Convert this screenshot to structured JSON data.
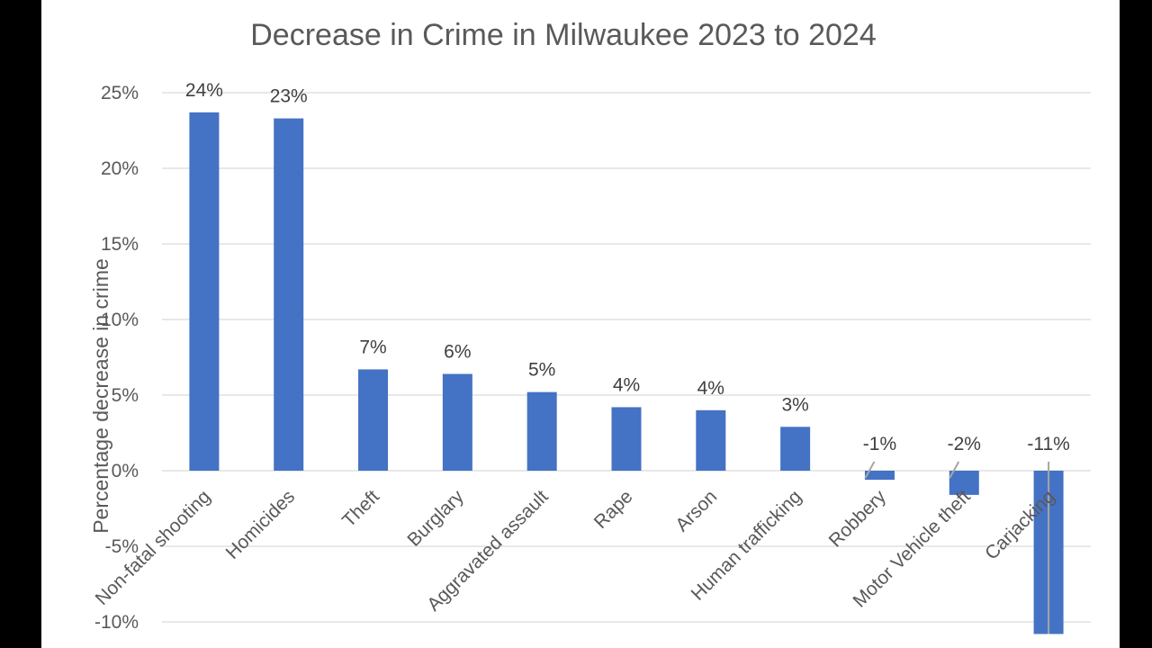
{
  "chart_data": {
    "type": "bar",
    "title": "Decrease in Crime in Milwaukee 2023 to 2024",
    "xlabel": "",
    "ylabel": "Percentage decrease in crime",
    "categories": [
      "Non-fatal shooting",
      "Homicides",
      "Theft",
      "Burglary",
      "Aggravated assault",
      "Rape",
      "Arson",
      "Human trafficking",
      "Robbery",
      "Motor Vehicle theft",
      "Carjacking"
    ],
    "values": [
      23.7,
      23.3,
      6.7,
      6.4,
      5.2,
      4.2,
      4.0,
      2.9,
      -0.6,
      -1.6,
      -10.8
    ],
    "data_labels": [
      "24%",
      "23%",
      "7%",
      "6%",
      "5%",
      "4%",
      "4%",
      "3%",
      "-1%",
      "-2%",
      "-11%"
    ],
    "ylim": [
      -11,
      25
    ],
    "yticks": [
      25,
      20,
      15,
      10,
      5,
      0,
      -5,
      -10
    ],
    "ytick_labels": [
      "25%",
      "20%",
      "15%",
      "10%",
      "5%",
      "0%",
      "-5%",
      "-10%"
    ],
    "grid": true,
    "legend": "none",
    "bar_color": "#4472c4"
  }
}
